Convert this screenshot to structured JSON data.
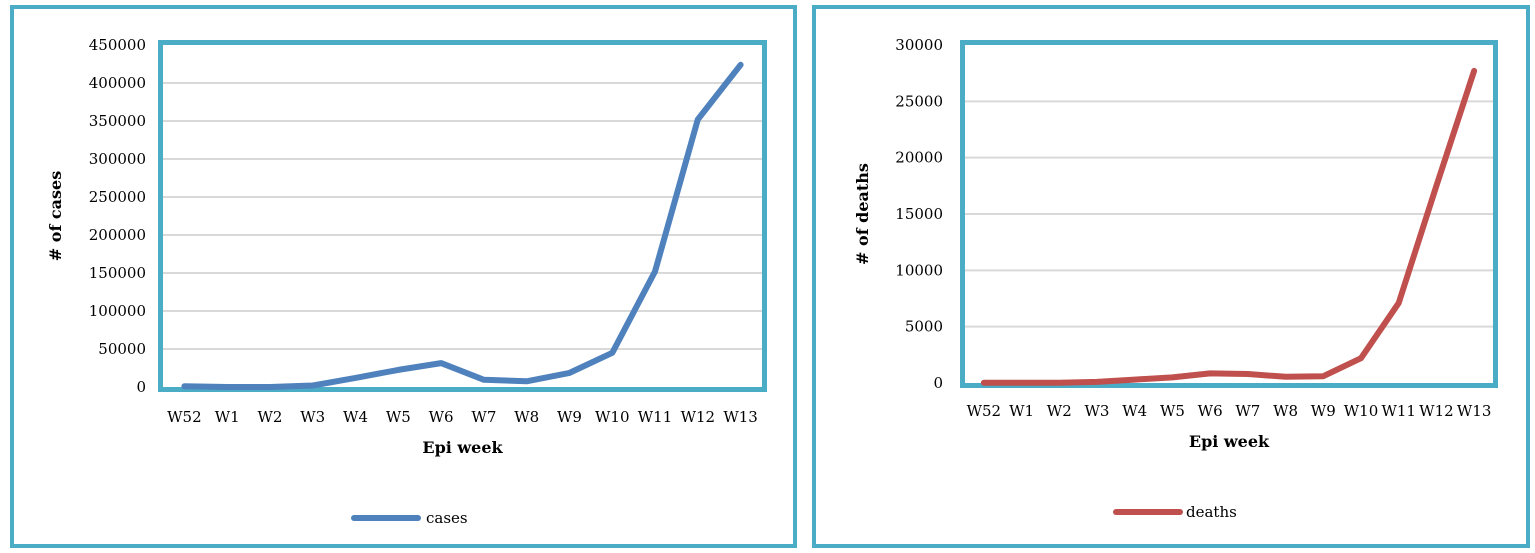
{
  "chart_data": [
    {
      "type": "line",
      "categories": [
        "W52",
        "W1",
        "W2",
        "W3",
        "W4",
        "W5",
        "W6",
        "W7",
        "W8",
        "W9",
        "W10",
        "W11",
        "W12",
        "W13"
      ],
      "series": [
        {
          "name": "cases",
          "color": "#4f81bd",
          "values": [
            1000,
            0,
            0,
            2000,
            12000,
            22500,
            31500,
            9500,
            7500,
            18500,
            45000,
            152000,
            352000,
            424000
          ]
        }
      ],
      "xlabel": "Epi week",
      "ylabel": "# of cases",
      "ylim": [
        0,
        450000
      ],
      "yticks": [
        0,
        50000,
        100000,
        150000,
        200000,
        250000,
        300000,
        350000,
        400000,
        450000
      ],
      "grid": true,
      "legend": "bottom"
    },
    {
      "type": "line",
      "categories": [
        "W52",
        "W1",
        "W2",
        "W3",
        "W4",
        "W5",
        "W6",
        "W7",
        "W8",
        "W9",
        "W10",
        "W11",
        "W12",
        "W13"
      ],
      "series": [
        {
          "name": "deaths",
          "color": "#c0504d",
          "values": [
            30,
            20,
            30,
            100,
            300,
            500,
            850,
            800,
            550,
            600,
            2200,
            7100,
            17500,
            27700
          ]
        }
      ],
      "xlabel": "Epi week",
      "ylabel": "# of deaths",
      "ylim": [
        0,
        30000
      ],
      "yticks": [
        0,
        5000,
        10000,
        15000,
        20000,
        25000,
        30000
      ],
      "grid": true,
      "legend": "bottom"
    }
  ]
}
